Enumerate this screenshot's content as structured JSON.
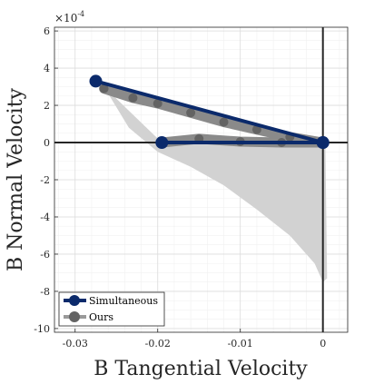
{
  "chart_data": {
    "type": "line",
    "xlabel": "B Tangential Velocity",
    "ylabel": "B Normal Velocity",
    "y_exponent_label": "×10",
    "y_exponent_power": "-4",
    "xlim": [
      -0.0325,
      0.003
    ],
    "ylim": [
      -10.2,
      6.2
    ],
    "xticks": [
      -0.03,
      -0.02,
      -0.01,
      0
    ],
    "xtick_labels": [
      "-0.03",
      "-0.02",
      "-0.01",
      "0"
    ],
    "yticks": [
      -10,
      -8,
      -6,
      -4,
      -2,
      0,
      2,
      4,
      6
    ],
    "ytick_labels": [
      "-10",
      "-8",
      "-6",
      "-4",
      "-2",
      "0",
      "2",
      "4",
      "6"
    ],
    "grid": true,
    "legend_position": "bottom-left",
    "colors": {
      "simultaneous": "#0b2a6b",
      "ours": "#636363",
      "ours_fill": "#d2d2d2",
      "zero_lines": "#262626"
    },
    "fill_region": {
      "name": "Ours",
      "x": [
        -0.0265,
        -0.0235,
        -0.02,
        -0.016,
        -0.012,
        -0.008,
        -0.004,
        -0.001,
        0,
        0.0005,
        0.0003,
        0,
        -0.0195,
        -0.0265
      ],
      "y": [
        3.0,
        0.8,
        -0.5,
        -1.3,
        -2.3,
        -3.6,
        -5.0,
        -6.5,
        -7.5,
        -7.3,
        0,
        0,
        0,
        3.0
      ]
    },
    "series": [
      {
        "name": "Simultaneous",
        "x": [
          -0.0275,
          0,
          -0.0195,
          0
        ],
        "y": [
          3.3,
          0,
          0,
          0
        ]
      },
      {
        "name": "Ours",
        "x": [
          -0.0265,
          -0.023,
          -0.02,
          -0.016,
          -0.012,
          -0.008,
          -0.004,
          0,
          -0.0195,
          -0.015,
          -0.01,
          -0.005,
          0
        ],
        "y": [
          2.9,
          2.4,
          2.1,
          1.6,
          1.1,
          0.7,
          0.3,
          0,
          0,
          0.2,
          0.05,
          0,
          0
        ]
      }
    ],
    "legend": [
      "Simultaneous",
      "Ours"
    ]
  }
}
